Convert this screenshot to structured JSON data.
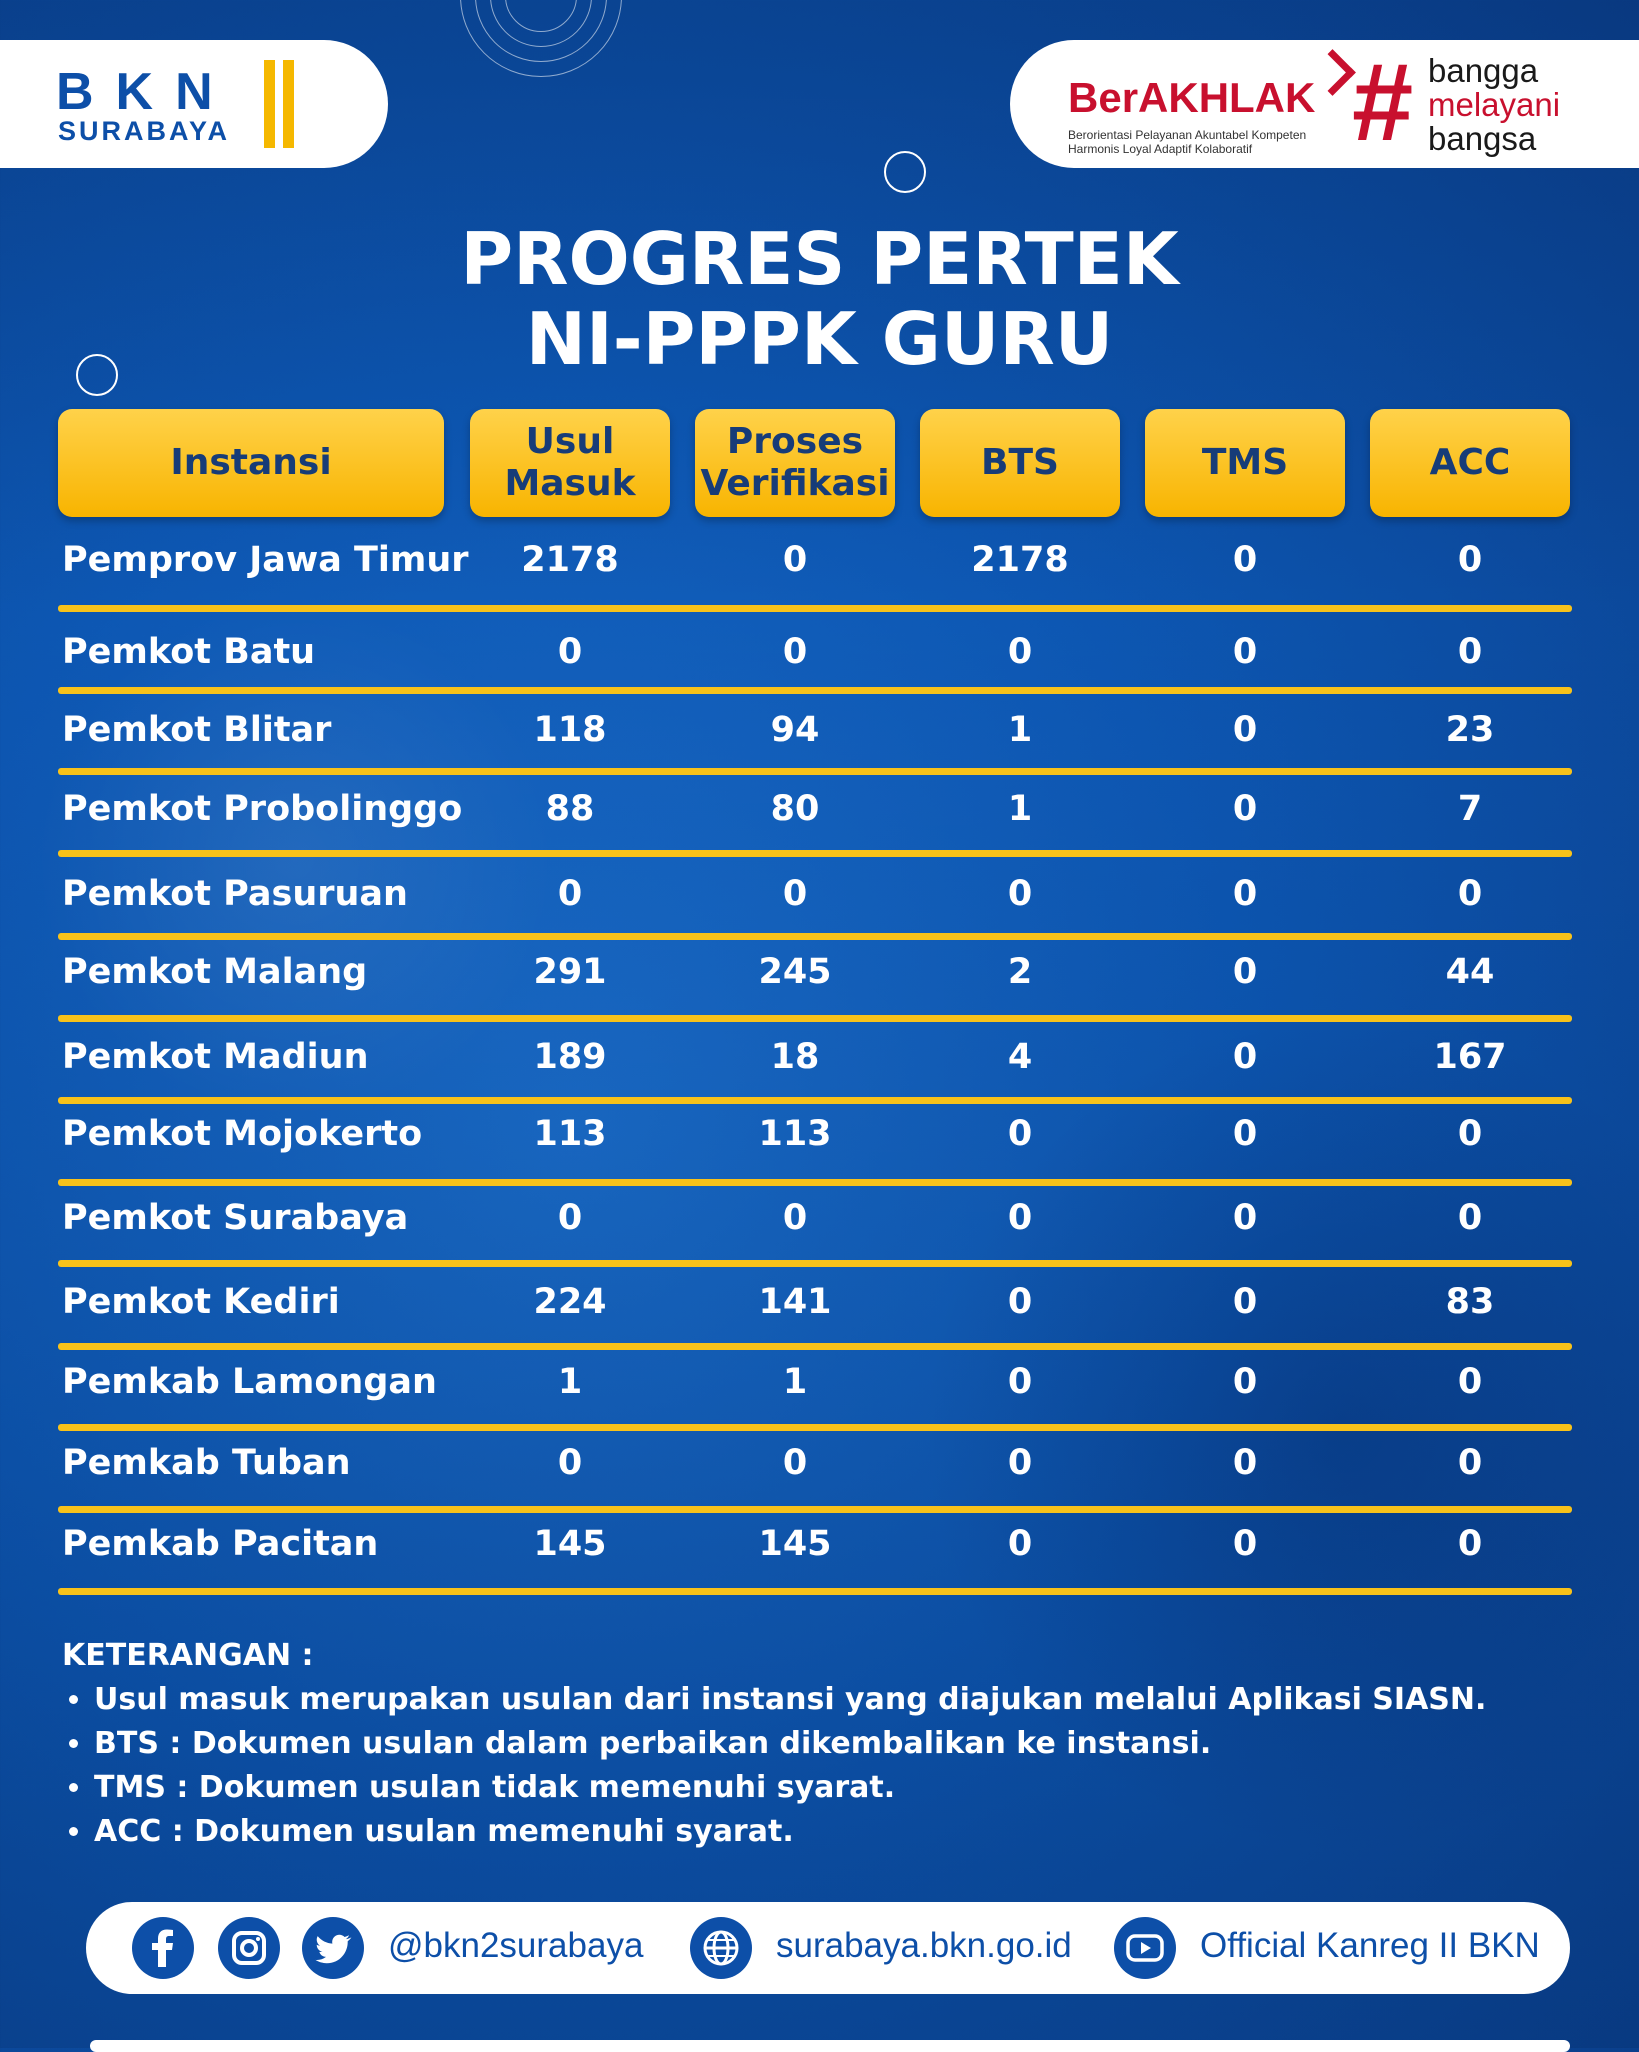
{
  "branding": {
    "bkn_word": "BKN",
    "bkn_sub": "SURABAYA",
    "berakhlak": "BerAKHLAK",
    "berakhlak_tagline": "Berorientasi Pelayanan Akuntabel Kompeten Harmonis Loyal Adaptif Kolaboratif",
    "hashtag": "#",
    "bangga_1": "bangga",
    "bangga_2": "melayani",
    "bangga_3": "bangsa"
  },
  "title": {
    "line1": "PROGRES PERTEK",
    "line2": "NI-PPPK GURU"
  },
  "table": {
    "headers": [
      "Instansi",
      "Usul\nMasuk",
      "Proses\nVerifikasi",
      "BTS",
      "TMS",
      "ACC"
    ],
    "rows": [
      {
        "instansi": "Pemprov Jawa Timur",
        "usul_masuk": "2178",
        "proses_verifikasi": "0",
        "bts": "2178",
        "tms": "0",
        "acc": "0"
      },
      {
        "instansi": "Pemkot Batu",
        "usul_masuk": "0",
        "proses_verifikasi": "0",
        "bts": "0",
        "tms": "0",
        "acc": "0"
      },
      {
        "instansi": "Pemkot Blitar",
        "usul_masuk": "118",
        "proses_verifikasi": "94",
        "bts": "1",
        "tms": "0",
        "acc": "23"
      },
      {
        "instansi": "Pemkot Probolinggo",
        "usul_masuk": "88",
        "proses_verifikasi": "80",
        "bts": "1",
        "tms": "0",
        "acc": "7"
      },
      {
        "instansi": "Pemkot Pasuruan",
        "usul_masuk": "0",
        "proses_verifikasi": "0",
        "bts": "0",
        "tms": "0",
        "acc": "0"
      },
      {
        "instansi": "Pemkot Malang",
        "usul_masuk": "291",
        "proses_verifikasi": "245",
        "bts": "2",
        "tms": "0",
        "acc": "44"
      },
      {
        "instansi": "Pemkot Madiun",
        "usul_masuk": "189",
        "proses_verifikasi": "18",
        "bts": "4",
        "tms": "0",
        "acc": "167"
      },
      {
        "instansi": "Pemkot Mojokerto",
        "usul_masuk": "113",
        "proses_verifikasi": "113",
        "bts": "0",
        "tms": "0",
        "acc": "0"
      },
      {
        "instansi": "Pemkot Surabaya",
        "usul_masuk": "0",
        "proses_verifikasi": "0",
        "bts": "0",
        "tms": "0",
        "acc": "0"
      },
      {
        "instansi": "Pemkot Kediri",
        "usul_masuk": "224",
        "proses_verifikasi": "141",
        "bts": "0",
        "tms": "0",
        "acc": "83"
      },
      {
        "instansi": "Pemkab Lamongan",
        "usul_masuk": "1",
        "proses_verifikasi": "1",
        "bts": "0",
        "tms": "0",
        "acc": "0"
      },
      {
        "instansi": "Pemkab Tuban",
        "usul_masuk": "0",
        "proses_verifikasi": "0",
        "bts": "0",
        "tms": "0",
        "acc": "0"
      },
      {
        "instansi": "Pemkab Pacitan",
        "usul_masuk": "145",
        "proses_verifikasi": "145",
        "bts": "0",
        "tms": "0",
        "acc": "0"
      }
    ]
  },
  "notes": {
    "heading": "KETERANGAN :",
    "items": [
      "Usul masuk merupakan usulan dari instansi yang diajukan melalui Aplikasi SIASN.",
      "BTS  : Dokumen usulan dalam perbaikan dikembalikan ke instansi.",
      "TMS : Dokumen usulan tidak memenuhi syarat.",
      "ACC  : Dokumen usulan memenuhi syarat."
    ]
  },
  "footer": {
    "social_handle": "@bkn2surabaya",
    "website": "surabaya.bkn.go.id",
    "youtube": "Official Kanreg II BKN",
    "icons": [
      "facebook-icon",
      "instagram-icon",
      "twitter-icon",
      "globe-icon",
      "youtube-icon"
    ]
  },
  "colors": {
    "background_blue": "#0d57b3",
    "header_yellow": "#f8b400",
    "separator_yellow": "#f8c21a",
    "brand_red": "#c8102e",
    "brand_blue": "#0d4fa8"
  }
}
